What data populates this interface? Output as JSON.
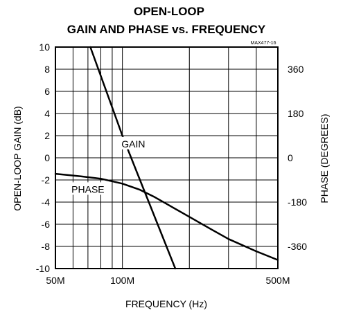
{
  "chart_data": {
    "type": "line",
    "title_line1": "OPEN-LOOP",
    "title_line2": "GAIN AND PHASE vs. FREQUENCY",
    "figure_code": "MAX477-16",
    "xlabel": "FREQUENCY (Hz)",
    "ylabel_left": "OPEN-LOOP GAIN (dB)",
    "ylabel_right": "PHASE (DEGREES)",
    "x_scale": "log",
    "xlim": [
      50000000,
      500000000
    ],
    "x_ticks": [
      {
        "value": 50000000,
        "label": "50M"
      },
      {
        "value": 100000000,
        "label": "100M"
      },
      {
        "value": 500000000,
        "label": "500M"
      }
    ],
    "ylim_left": [
      -10,
      10
    ],
    "y_ticks_left": [
      {
        "value": 10,
        "label": "10"
      },
      {
        "value": 8,
        "label": "8"
      },
      {
        "value": 6,
        "label": "6"
      },
      {
        "value": 4,
        "label": "4"
      },
      {
        "value": 2,
        "label": "2"
      },
      {
        "value": 0,
        "label": "0"
      },
      {
        "value": -2,
        "label": "-2"
      },
      {
        "value": -4,
        "label": "-4"
      },
      {
        "value": -6,
        "label": "-6"
      },
      {
        "value": -8,
        "label": "-8"
      },
      {
        "value": -10,
        "label": "-10"
      }
    ],
    "ylim_right": [
      -450,
      450
    ],
    "y_ticks_right": [
      {
        "value": 360,
        "label": "360"
      },
      {
        "value": 180,
        "label": "180"
      },
      {
        "value": 0,
        "label": "0"
      },
      {
        "value": -180,
        "label": "-180"
      },
      {
        "value": -360,
        "label": "-360"
      }
    ],
    "grid": true,
    "series": [
      {
        "name": "GAIN",
        "axis": "left",
        "points": [
          [
            71800000,
            10
          ],
          [
            94000000,
            3.5
          ],
          [
            100000000,
            2
          ],
          [
            120000000,
            -2
          ],
          [
            173000000,
            -10
          ]
        ]
      },
      {
        "name": "PHASE",
        "axis": "right",
        "points": [
          [
            50000000,
            -65
          ],
          [
            65000000,
            -75
          ],
          [
            80000000,
            -85
          ],
          [
            100000000,
            -105
          ],
          [
            120000000,
            -130
          ],
          [
            140000000,
            -160
          ],
          [
            160000000,
            -190
          ],
          [
            200000000,
            -240
          ],
          [
            250000000,
            -290
          ],
          [
            300000000,
            -330
          ],
          [
            400000000,
            -380
          ],
          [
            500000000,
            -415
          ]
        ]
      }
    ]
  }
}
